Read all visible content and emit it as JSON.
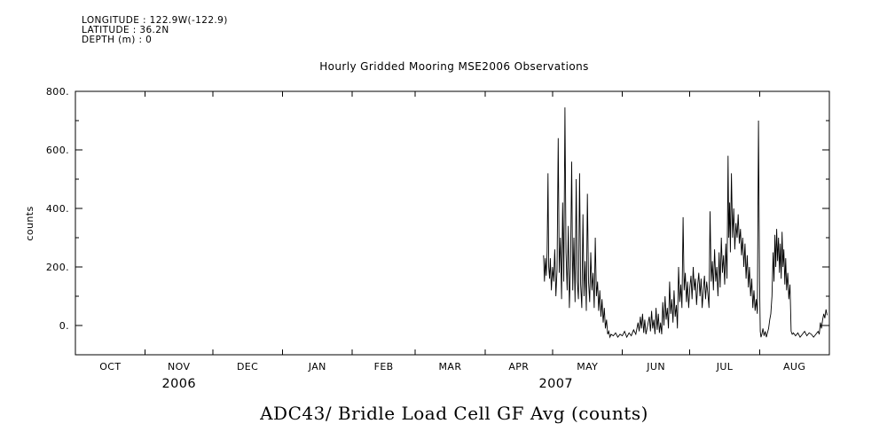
{
  "header": {
    "longitude": "LONGITUDE : 122.9W(-122.9)",
    "latitude": "LATITUDE : 36.2N",
    "depth": "DEPTH (m) : 0"
  },
  "chart_data": {
    "type": "line",
    "title": "Hourly Gridded Mooring MSE2006 Observations",
    "bottom_title": "ADC43/ Bridle Load Cell GF Avg (counts)",
    "ylabel": "counts",
    "ylim": [
      -100,
      800
    ],
    "yticks": [
      0,
      200,
      400,
      600,
      800
    ],
    "ytick_labels": [
      "0.",
      "200.",
      "400.",
      "600.",
      "800."
    ],
    "y_minor_ticks": [
      100,
      300,
      500,
      700
    ],
    "grid": false,
    "line_color": "#000000",
    "x_axis": {
      "unit": "days since 2006-10-01",
      "xlim": [
        0,
        335
      ],
      "month_boundaries": [
        0,
        31,
        61,
        92,
        123,
        151,
        182,
        212,
        243,
        273,
        304,
        335
      ],
      "month_ticks": [
        {
          "label": "OCT",
          "t": 15.5
        },
        {
          "label": "NOV",
          "t": 46
        },
        {
          "label": "DEC",
          "t": 76.5
        },
        {
          "label": "JAN",
          "t": 107.5
        },
        {
          "label": "FEB",
          "t": 137
        },
        {
          "label": "MAR",
          "t": 166.5
        },
        {
          "label": "APR",
          "t": 197
        },
        {
          "label": "MAY",
          "t": 227.5
        },
        {
          "label": "JUN",
          "t": 258
        },
        {
          "label": "JUL",
          "t": 288.5
        },
        {
          "label": "AUG",
          "t": 319.5
        }
      ],
      "year_labels": [
        {
          "label": "2006",
          "t": 46
        },
        {
          "label": "2007",
          "t": 213.5
        }
      ]
    },
    "series": [
      {
        "name": "ADC43/ Bridle Load Cell GF Avg (counts)",
        "points": [
          [
            208,
            240
          ],
          [
            208.4,
            150
          ],
          [
            208.8,
            230
          ],
          [
            209.2,
            170
          ],
          [
            209.6,
            250
          ],
          [
            210,
            520
          ],
          [
            210.3,
            200
          ],
          [
            210.7,
            160
          ],
          [
            211,
            230
          ],
          [
            211.5,
            120
          ],
          [
            212,
            200
          ],
          [
            212.5,
            150
          ],
          [
            213,
            260
          ],
          [
            213.5,
            100
          ],
          [
            214,
            190
          ],
          [
            214.5,
            640
          ],
          [
            215,
            180
          ],
          [
            215.5,
            300
          ],
          [
            216,
            90
          ],
          [
            216.5,
            420
          ],
          [
            217,
            150
          ],
          [
            217.5,
            745
          ],
          [
            218,
            250
          ],
          [
            218.5,
            120
          ],
          [
            219,
            340
          ],
          [
            219.5,
            60
          ],
          [
            220,
            200
          ],
          [
            220.5,
            560
          ],
          [
            221,
            120
          ],
          [
            221.5,
            300
          ],
          [
            222,
            80
          ],
          [
            222.5,
            500
          ],
          [
            223,
            150
          ],
          [
            223.5,
            90
          ],
          [
            224,
            520
          ],
          [
            224.5,
            140
          ],
          [
            225,
            60
          ],
          [
            225.5,
            380
          ],
          [
            226,
            100
          ],
          [
            226.5,
            220
          ],
          [
            227,
            50
          ],
          [
            227.5,
            450
          ],
          [
            228,
            150
          ],
          [
            228.5,
            80
          ],
          [
            229,
            250
          ],
          [
            229.5,
            120
          ],
          [
            230,
            180
          ],
          [
            230.5,
            60
          ],
          [
            231,
            300
          ],
          [
            231.5,
            100
          ],
          [
            232,
            150
          ],
          [
            232.5,
            50
          ],
          [
            233,
            120
          ],
          [
            233.5,
            30
          ],
          [
            234,
            90
          ],
          [
            234.5,
            10
          ],
          [
            235,
            60
          ],
          [
            235.5,
            -10
          ],
          [
            236,
            20
          ],
          [
            236.5,
            -30
          ],
          [
            237,
            -20
          ],
          [
            237.5,
            -40
          ],
          [
            238,
            -30
          ],
          [
            239,
            -35
          ],
          [
            240,
            -25
          ],
          [
            241,
            -40
          ],
          [
            242,
            -30
          ],
          [
            243,
            -35
          ],
          [
            244,
            -20
          ],
          [
            245,
            -40
          ],
          [
            246,
            -25
          ],
          [
            247,
            -35
          ],
          [
            248,
            -15
          ],
          [
            249,
            -30
          ],
          [
            250,
            10
          ],
          [
            250.5,
            -20
          ],
          [
            251,
            30
          ],
          [
            251.5,
            -10
          ],
          [
            252,
            40
          ],
          [
            252.5,
            -25
          ],
          [
            253,
            20
          ],
          [
            253.5,
            -30
          ],
          [
            254,
            -10
          ],
          [
            255,
            30
          ],
          [
            255.5,
            -20
          ],
          [
            256,
            50
          ],
          [
            256.5,
            -10
          ],
          [
            257,
            20
          ],
          [
            257.5,
            -30
          ],
          [
            258,
            60
          ],
          [
            258.5,
            -15
          ],
          [
            259,
            40
          ],
          [
            259.5,
            -25
          ],
          [
            260,
            10
          ],
          [
            260.5,
            -30
          ],
          [
            261,
            80
          ],
          [
            261.5,
            0
          ],
          [
            262,
            100
          ],
          [
            262.5,
            20
          ],
          [
            263,
            60
          ],
          [
            263.5,
            -10
          ],
          [
            264,
            150
          ],
          [
            264.5,
            40
          ],
          [
            265,
            90
          ],
          [
            265.5,
            10
          ],
          [
            266,
            120
          ],
          [
            266.5,
            30
          ],
          [
            267,
            70
          ],
          [
            267.5,
            -10
          ],
          [
            268,
            200
          ],
          [
            268.5,
            80
          ],
          [
            269,
            140
          ],
          [
            269.5,
            60
          ],
          [
            270,
            370
          ],
          [
            270.5,
            120
          ],
          [
            271,
            180
          ],
          [
            271.5,
            80
          ],
          [
            272,
            150
          ],
          [
            272.5,
            60
          ],
          [
            273,
            130
          ],
          [
            273.5,
            170
          ],
          [
            274,
            90
          ],
          [
            274.5,
            200
          ],
          [
            275,
            120
          ],
          [
            275.5,
            160
          ],
          [
            276,
            70
          ],
          [
            276.5,
            140
          ],
          [
            277,
            180
          ],
          [
            277.5,
            100
          ],
          [
            278,
            160
          ],
          [
            278.5,
            60
          ],
          [
            279,
            120
          ],
          [
            279.5,
            170
          ],
          [
            280,
            90
          ],
          [
            280.5,
            150
          ],
          [
            281,
            110
          ],
          [
            281.5,
            60
          ],
          [
            282,
            390
          ],
          [
            282.5,
            150
          ],
          [
            283,
            220
          ],
          [
            283.5,
            120
          ],
          [
            284,
            260
          ],
          [
            284.5,
            150
          ],
          [
            285,
            200
          ],
          [
            285.5,
            100
          ],
          [
            286,
            250
          ],
          [
            286.5,
            130
          ],
          [
            287,
            300
          ],
          [
            287.5,
            180
          ],
          [
            288,
            240
          ],
          [
            288.5,
            140
          ],
          [
            289,
            280
          ],
          [
            289.5,
            160
          ],
          [
            290,
            580
          ],
          [
            290.3,
            300
          ],
          [
            290.7,
            420
          ],
          [
            291,
            250
          ],
          [
            291.5,
            520
          ],
          [
            292,
            300
          ],
          [
            292.5,
            400
          ],
          [
            293,
            260
          ],
          [
            293.5,
            350
          ],
          [
            294,
            300
          ],
          [
            294.5,
            380
          ],
          [
            295,
            280
          ],
          [
            295.5,
            330
          ],
          [
            296,
            240
          ],
          [
            296.5,
            300
          ],
          [
            297,
            200
          ],
          [
            297.5,
            280
          ],
          [
            298,
            160
          ],
          [
            298.5,
            240
          ],
          [
            299,
            130
          ],
          [
            299.5,
            200
          ],
          [
            300,
            100
          ],
          [
            300.5,
            160
          ],
          [
            301,
            60
          ],
          [
            301.5,
            120
          ],
          [
            302,
            50
          ],
          [
            302.5,
            90
          ],
          [
            303,
            40
          ],
          [
            303.5,
            700
          ],
          [
            304,
            150
          ],
          [
            304.3,
            -20
          ],
          [
            304.6,
            -40
          ],
          [
            305,
            -30
          ],
          [
            305.5,
            -10
          ],
          [
            306,
            -35
          ],
          [
            306.5,
            -20
          ],
          [
            307,
            -40
          ],
          [
            307.5,
            -25
          ],
          [
            308,
            -10
          ],
          [
            308.5,
            20
          ],
          [
            309,
            40
          ],
          [
            309.5,
            100
          ],
          [
            310,
            250
          ],
          [
            310.4,
            150
          ],
          [
            310.8,
            310
          ],
          [
            311.2,
            200
          ],
          [
            311.6,
            330
          ],
          [
            312,
            220
          ],
          [
            312.4,
            300
          ],
          [
            312.8,
            180
          ],
          [
            313.2,
            280
          ],
          [
            313.6,
            160
          ],
          [
            314,
            320
          ],
          [
            314.4,
            200
          ],
          [
            314.8,
            260
          ],
          [
            315.2,
            140
          ],
          [
            315.6,
            230
          ],
          [
            316,
            120
          ],
          [
            316.5,
            180
          ],
          [
            317,
            90
          ],
          [
            317.5,
            140
          ],
          [
            318,
            -20
          ],
          [
            318.5,
            -30
          ],
          [
            319,
            -25
          ],
          [
            320,
            -35
          ],
          [
            321,
            -25
          ],
          [
            322,
            -40
          ],
          [
            323,
            -30
          ],
          [
            324,
            -20
          ],
          [
            325,
            -35
          ],
          [
            326,
            -25
          ],
          [
            327,
            -30
          ],
          [
            328,
            -40
          ],
          [
            329,
            -30
          ],
          [
            330,
            -20
          ],
          [
            330.5,
            -30
          ],
          [
            331,
            10
          ],
          [
            331.5,
            -10
          ],
          [
            332,
            20
          ],
          [
            332.5,
            40
          ],
          [
            333,
            25
          ],
          [
            333.5,
            55
          ],
          [
            334,
            35
          ]
        ]
      }
    ]
  }
}
